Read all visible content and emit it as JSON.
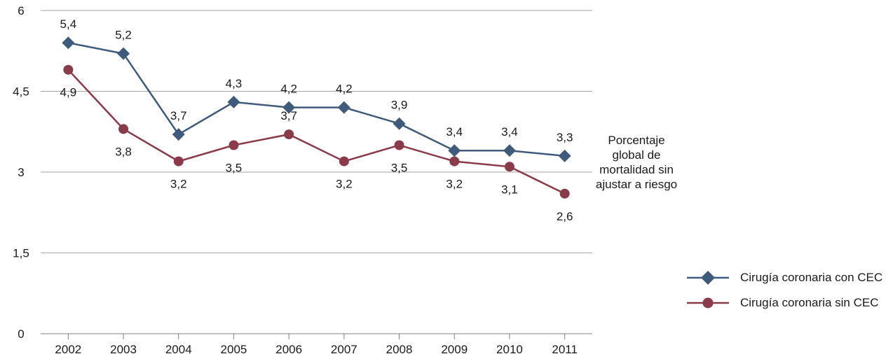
{
  "chart_data": {
    "type": "line",
    "x": [
      "2002",
      "2003",
      "2004",
      "2005",
      "2006",
      "2007",
      "2008",
      "2009",
      "2010",
      "2011"
    ],
    "ylim": [
      0,
      6
    ],
    "yticks": [
      0,
      1.5,
      3,
      4.5,
      6
    ],
    "ytick_labels": [
      "0",
      "1,5",
      "3",
      "4,5",
      "6"
    ],
    "grid": true,
    "legend_position": "right",
    "side_label": "Porcentaje global de mortalidad sin ajustar a riesgo",
    "series": [
      {
        "name": "Cirugía coronaria con CEC",
        "values": [
          5.4,
          5.2,
          3.7,
          4.3,
          4.2,
          4.2,
          3.9,
          3.4,
          3.4,
          3.3
        ],
        "labels": [
          "5,4",
          "5,2",
          "3,7",
          "4,3",
          "4,2",
          "4,2",
          "3,9",
          "3,4",
          "3,4",
          "3,3"
        ],
        "label_position": [
          "above",
          "above",
          "above",
          "above",
          "above",
          "above",
          "above",
          "above",
          "above",
          "above"
        ],
        "color": "#3f5b7c",
        "marker": "diamond"
      },
      {
        "name": "Cirugía coronaria sin CEC",
        "values": [
          4.9,
          3.8,
          3.2,
          3.5,
          3.7,
          3.2,
          3.5,
          3.2,
          3.1,
          2.6
        ],
        "labels": [
          "4,9",
          "3,8",
          "3,2",
          "3,5",
          "3,7",
          "3,2",
          "3,5",
          "3,2",
          "3,1",
          "2,6"
        ],
        "label_position": [
          "below",
          "below",
          "below",
          "below",
          "above",
          "below",
          "below",
          "below",
          "below",
          "below"
        ],
        "color": "#8b3a4a",
        "marker": "circle"
      }
    ]
  }
}
